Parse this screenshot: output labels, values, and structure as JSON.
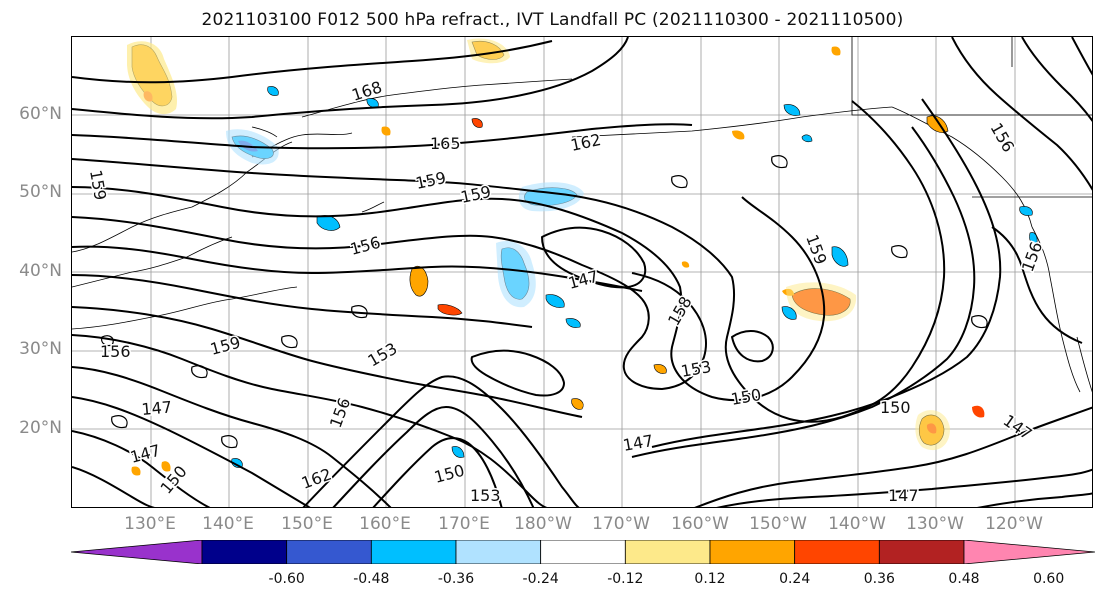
{
  "title": "2021103100 F012 500 hPa refract., IVT Landfall PC (2021110300 - 2021110500)",
  "lat_labels": [
    "60°N",
    "50°N",
    "40°N",
    "30°N",
    "20°N"
  ],
  "lon_labels": [
    "130°E",
    "140°E",
    "150°E",
    "160°E",
    "170°E",
    "180°W",
    "170°W",
    "160°W",
    "150°W",
    "140°W",
    "130°W",
    "120°W"
  ],
  "contour_labels": [
    "168",
    "165",
    "162",
    "159",
    "159",
    "156",
    "159",
    "156",
    "159",
    "153",
    "147",
    "158",
    "153",
    "150",
    "150",
    "147",
    "150",
    "153",
    "162",
    "150",
    "147",
    "147",
    "156",
    "156",
    "159",
    "156",
    "147",
    "147"
  ],
  "colorbar": {
    "ticks": [
      "-0.60",
      "-0.48",
      "-0.36",
      "-0.24",
      "-0.12",
      "0.12",
      "0.24",
      "0.36",
      "0.48",
      "0.60"
    ],
    "colors": [
      "#9932cc",
      "#00008b",
      "#3558d0",
      "#00bfff",
      "#b0e2ff",
      "#ffffff",
      "#fde98a",
      "#ffa500",
      "#ff4500",
      "#b22222",
      "#ff85b0"
    ]
  }
}
